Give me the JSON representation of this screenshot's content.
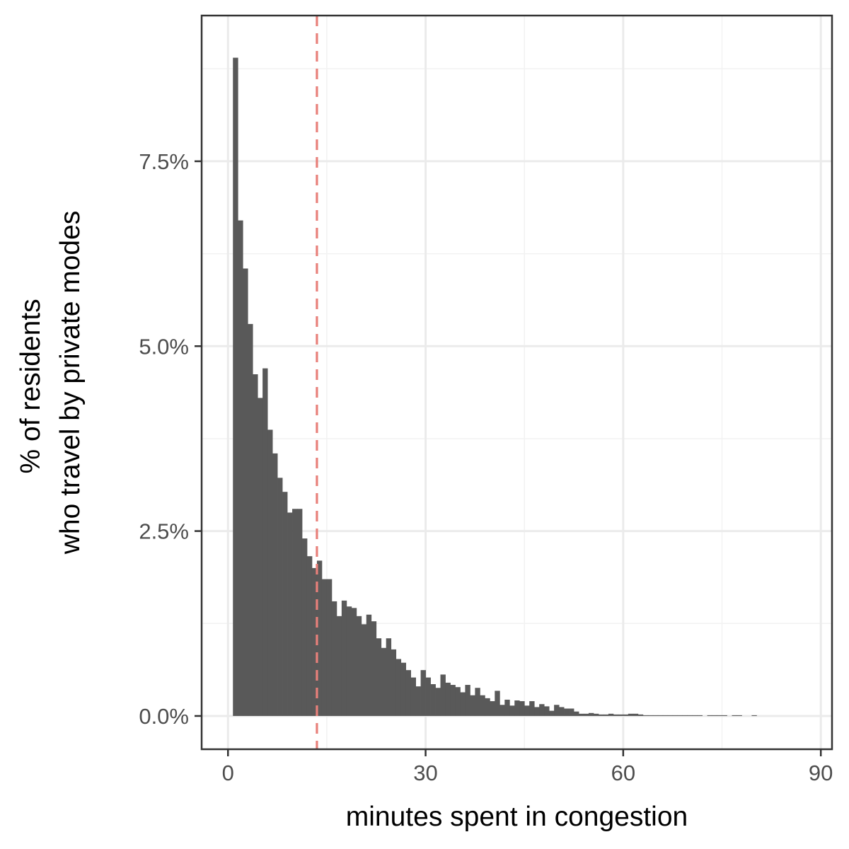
{
  "chart_data": {
    "type": "bar",
    "subtype": "histogram",
    "xlabel": "minutes spent in congestion",
    "ylabel_lines": [
      "% of residents",
      "who travel by private modes"
    ],
    "x_ticks": [
      {
        "value": 0,
        "label": "0"
      },
      {
        "value": 30,
        "label": "30"
      },
      {
        "value": 60,
        "label": "60"
      },
      {
        "value": 90,
        "label": "90"
      }
    ],
    "y_ticks": [
      {
        "value": 0,
        "label": "0.0%"
      },
      {
        "value": 2.5,
        "label": "2.5%"
      },
      {
        "value": 5.0,
        "label": "5.0%"
      },
      {
        "value": 7.5,
        "label": "7.5%"
      }
    ],
    "xlim": [
      -4,
      91.7
    ],
    "ylim": [
      -0.45,
      9.47
    ],
    "bin_width": 0.75,
    "bin_start": 0.75,
    "values": [
      8.9,
      6.7,
      6.05,
      5.3,
      4.62,
      4.3,
      4.7,
      3.87,
      3.55,
      3.22,
      3.03,
      2.75,
      2.8,
      2.8,
      2.4,
      2.16,
      2.0,
      2.1,
      1.85,
      1.85,
      1.55,
      1.35,
      1.56,
      1.48,
      1.46,
      1.35,
      1.24,
      1.37,
      1.28,
      1.05,
      0.92,
      1.05,
      0.9,
      0.77,
      0.72,
      0.62,
      0.52,
      0.4,
      0.62,
      0.52,
      0.43,
      0.38,
      0.56,
      0.45,
      0.42,
      0.39,
      0.32,
      0.42,
      0.28,
      0.38,
      0.28,
      0.24,
      0.2,
      0.34,
      0.15,
      0.22,
      0.14,
      0.21,
      0.2,
      0.14,
      0.2,
      0.12,
      0.16,
      0.13,
      0.07,
      0.15,
      0.12,
      0.1,
      0.1,
      0.06,
      0.03,
      0.03,
      0.04,
      0.03,
      0.02,
      0.02,
      0.03,
      0.02,
      0.02,
      0.02,
      0.03,
      0.03,
      0.02,
      0.01,
      0.01,
      0.01,
      0.01,
      0.01,
      0.01,
      0.01,
      0.01,
      0.01,
      0.01,
      0.01,
      0.01,
      0.0,
      0.01,
      0.01,
      0.01,
      0.01,
      0.0,
      0.01,
      0.01,
      0.0,
      0.0,
      0.01,
      0.0,
      0.0
    ],
    "reference_line": {
      "x": 13.5,
      "style": "dashed"
    },
    "grid": true,
    "legend": "none"
  },
  "colors": {
    "bars": "#595959",
    "reference_line": "#e8807a",
    "panel_border": "#333333",
    "grid": "#ebebeb"
  }
}
